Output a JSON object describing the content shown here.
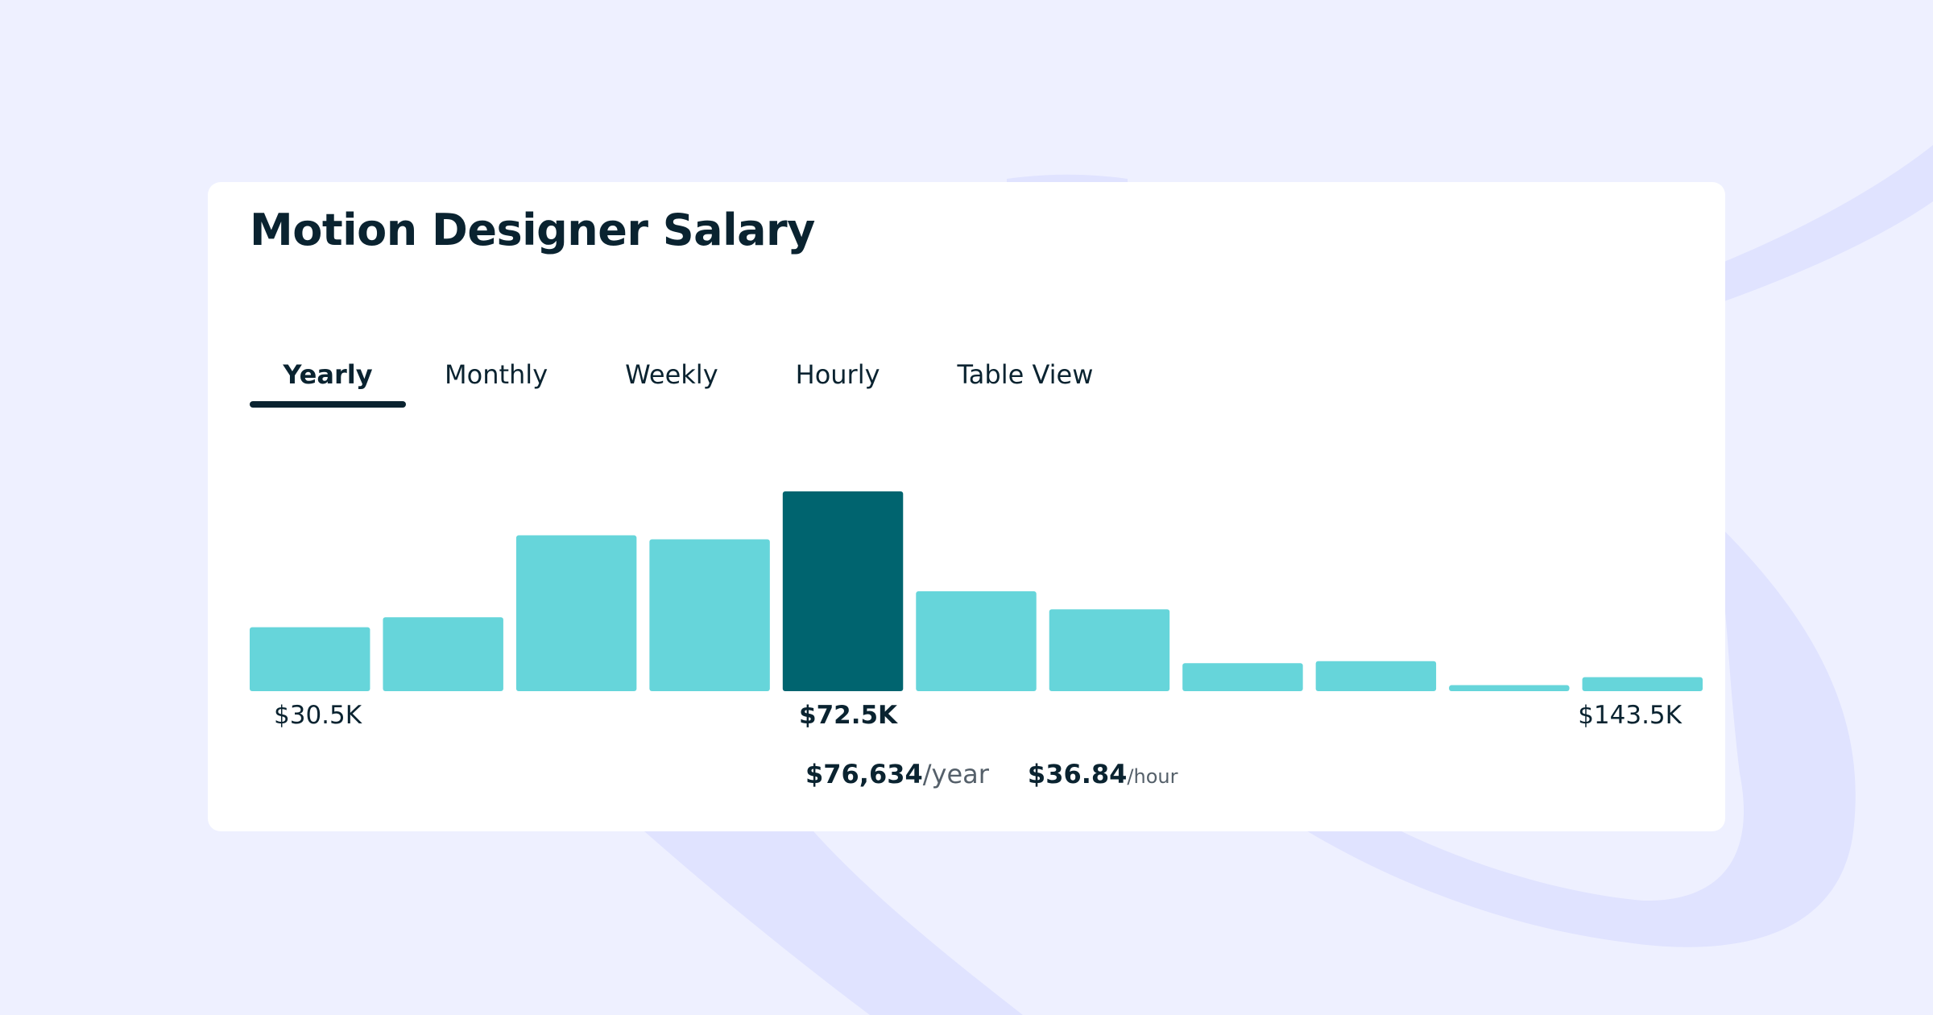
{
  "page": {
    "title": "Motion Designer Salary"
  },
  "tabs": [
    {
      "label": "Yearly",
      "active": true
    },
    {
      "label": "Monthly",
      "active": false
    },
    {
      "label": "Weekly",
      "active": false
    },
    {
      "label": "Hourly",
      "active": false
    },
    {
      "label": "Table View",
      "active": false
    }
  ],
  "colors": {
    "bar": "#66d5da",
    "bar_highlight": "#00646f",
    "title": "#0a2330",
    "background": "#eef0ff"
  },
  "range": {
    "min_label": "$30.5K",
    "median_label": "$72.5K",
    "max_label": "$143.5K"
  },
  "summary": {
    "yearly_value": "$76,634",
    "yearly_unit": "/year",
    "hourly_value": "$36.84",
    "hourly_unit": "/hour"
  },
  "chart_data": {
    "type": "bar",
    "title": "",
    "xlabel": "",
    "ylabel": "",
    "highlight_index": 4,
    "values": [
      32,
      37,
      78,
      76,
      100,
      50,
      41,
      14,
      15,
      3,
      7
    ],
    "ylim": [
      0,
      100
    ]
  }
}
